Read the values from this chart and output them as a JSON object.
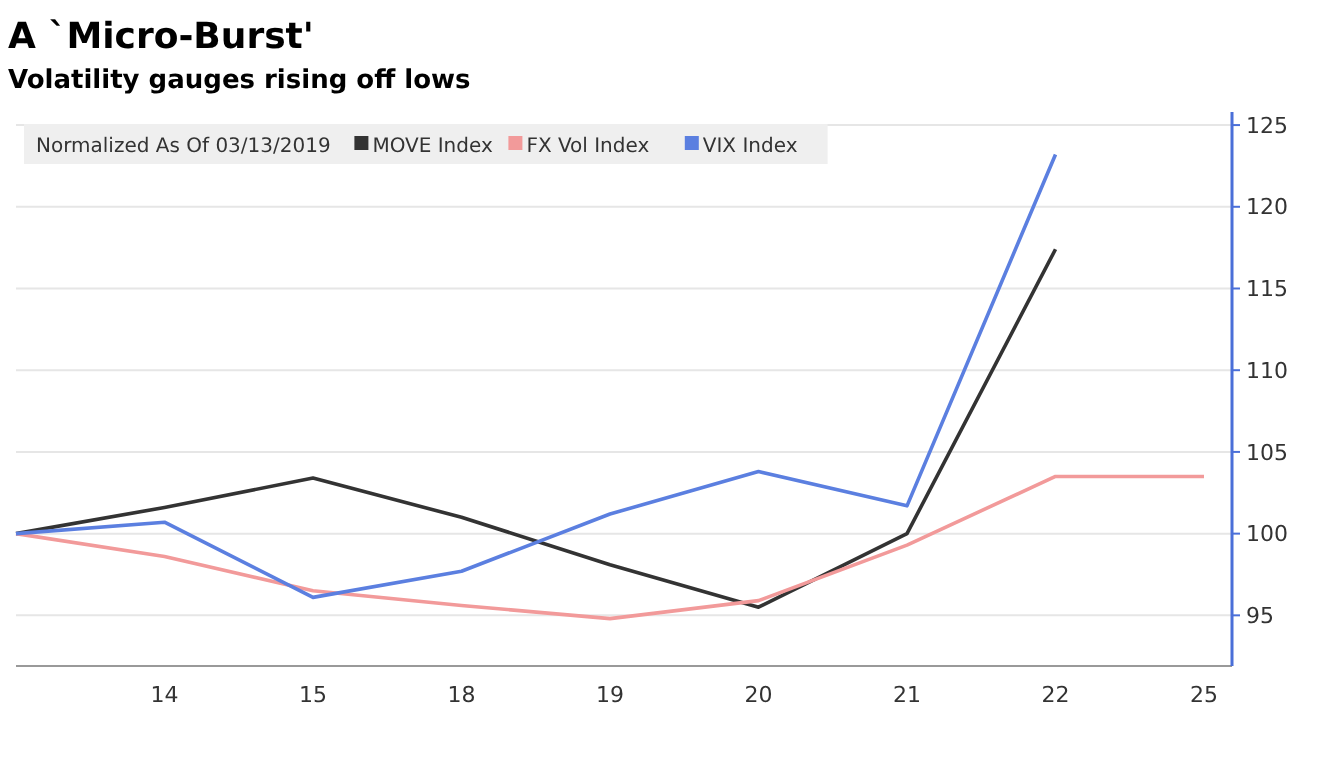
{
  "chart_data": {
    "type": "line",
    "title": "A `Micro-Burst'",
    "subtitle": "Volatility gauges rising off lows",
    "legend_title": "Normalized As Of 03/13/2019",
    "categories": [
      null,
      "14",
      "15",
      "18",
      "19",
      "20",
      "21",
      "22",
      "25"
    ],
    "series": [
      {
        "name": "MOVE Index",
        "color": "#333333",
        "values": [
          100,
          101.6,
          103.4,
          101.0,
          98.1,
          95.5,
          100,
          117.4,
          null
        ]
      },
      {
        "name": "FX Vol Index",
        "color": "#f29a9a",
        "values": [
          100,
          98.6,
          96.5,
          95.6,
          94.8,
          95.9,
          99.3,
          103.5,
          103.5
        ]
      },
      {
        "name": "VIX Index",
        "color": "#5b7fe0",
        "values": [
          100,
          100.7,
          96.1,
          97.7,
          101.2,
          103.8,
          101.7,
          123.2,
          null
        ]
      }
    ],
    "ylim": [
      91.9,
      125.8
    ],
    "yticks": [
      95,
      100,
      105,
      110,
      115,
      120,
      125
    ],
    "grid": "y",
    "legend": "top left",
    "marker": "none",
    "line_style": "solid"
  }
}
